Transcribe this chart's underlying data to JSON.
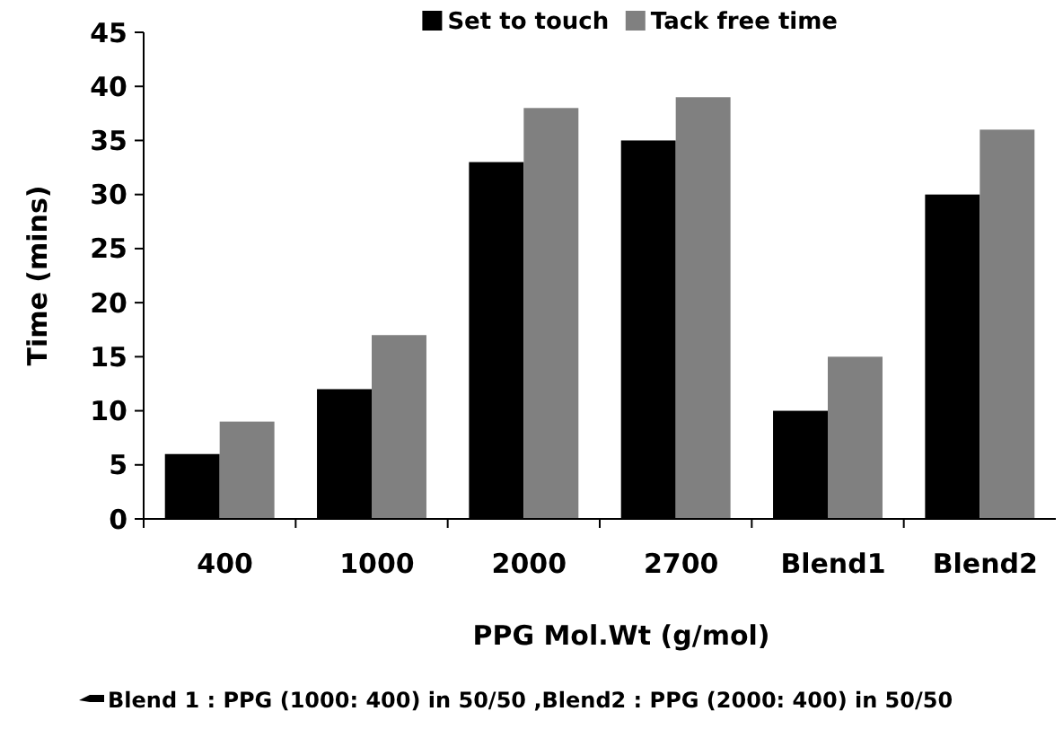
{
  "chart_data": {
    "type": "bar",
    "xlabel": "PPG Mol.Wt (g/mol)",
    "ylabel": "Time (mins)",
    "categories": [
      "400",
      "1000",
      "2000",
      "2700",
      "Blend1",
      "Blend2"
    ],
    "series": [
      {
        "name": "Set to touch",
        "color": "#000000",
        "values": [
          6,
          12,
          33,
          35,
          10,
          30
        ]
      },
      {
        "name": "Tack free time",
        "color": "#808080",
        "values": [
          9,
          17,
          38,
          39,
          15,
          36
        ]
      }
    ],
    "ylim": [
      0,
      45
    ],
    "yticks": [
      0,
      5,
      10,
      15,
      20,
      25,
      30,
      35,
      40,
      45
    ],
    "grid": false,
    "legend": "top",
    "annotations": [
      "Blend 1 : PPG (1000: 400)  in 50/50 ,Blend2 : PPG (2000: 400) in 50/50"
    ]
  }
}
